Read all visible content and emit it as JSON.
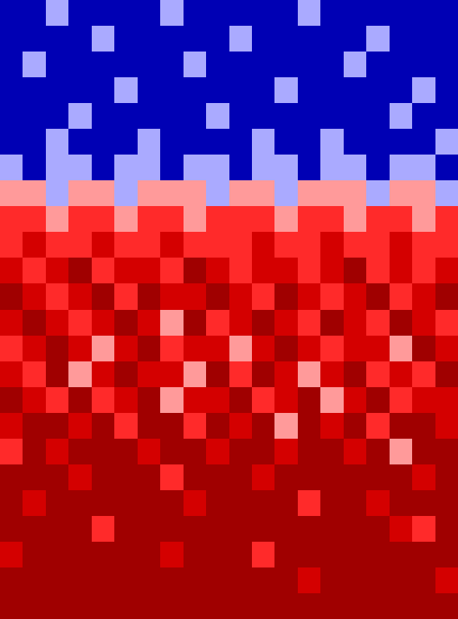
{
  "chart_data": {
    "type": "heatmap",
    "tick_labels": false,
    "colors": [
      "#0000b4",
      "#aaaaff",
      "#ff9a9a",
      "#ff2a2a",
      "#d40000",
      "#a00000"
    ],
    "values": [
      [
        0,
        0,
        1,
        0,
        0,
        0,
        0,
        1,
        0,
        0,
        0,
        0,
        0,
        1,
        0,
        0,
        0,
        0,
        0,
        0
      ],
      [
        0,
        0,
        0,
        0,
        1,
        0,
        0,
        0,
        0,
        0,
        1,
        0,
        0,
        0,
        0,
        0,
        1,
        0,
        0,
        0
      ],
      [
        0,
        1,
        0,
        0,
        0,
        0,
        0,
        0,
        1,
        0,
        0,
        0,
        0,
        0,
        0,
        1,
        0,
        0,
        0,
        0
      ],
      [
        0,
        0,
        0,
        0,
        0,
        1,
        0,
        0,
        0,
        0,
        0,
        0,
        1,
        0,
        0,
        0,
        0,
        0,
        1,
        0
      ],
      [
        0,
        0,
        0,
        1,
        0,
        0,
        0,
        0,
        0,
        1,
        0,
        0,
        0,
        0,
        0,
        0,
        0,
        1,
        0,
        0
      ],
      [
        0,
        0,
        1,
        0,
        0,
        0,
        1,
        0,
        0,
        0,
        0,
        1,
        0,
        0,
        1,
        0,
        0,
        0,
        0,
        1
      ],
      [
        1,
        0,
        1,
        1,
        0,
        1,
        1,
        0,
        1,
        1,
        0,
        1,
        1,
        0,
        1,
        1,
        0,
        1,
        1,
        0
      ],
      [
        2,
        2,
        1,
        2,
        2,
        1,
        2,
        2,
        2,
        1,
        2,
        2,
        1,
        2,
        2,
        2,
        1,
        2,
        2,
        1
      ],
      [
        3,
        3,
        2,
        3,
        3,
        2,
        3,
        3,
        2,
        3,
        3,
        3,
        2,
        3,
        3,
        2,
        3,
        3,
        2,
        3
      ],
      [
        3,
        4,
        3,
        3,
        4,
        3,
        3,
        4,
        3,
        3,
        3,
        4,
        3,
        3,
        4,
        3,
        3,
        4,
        3,
        3
      ],
      [
        4,
        3,
        4,
        5,
        3,
        4,
        4,
        3,
        5,
        4,
        3,
        4,
        4,
        3,
        4,
        5,
        3,
        4,
        3,
        4
      ],
      [
        5,
        4,
        3,
        4,
        5,
        3,
        5,
        4,
        4,
        5,
        4,
        3,
        5,
        4,
        3,
        4,
        5,
        3,
        4,
        5
      ],
      [
        4,
        5,
        4,
        3,
        4,
        5,
        4,
        2,
        5,
        3,
        4,
        5,
        4,
        3,
        5,
        4,
        3,
        5,
        4,
        3
      ],
      [
        3,
        4,
        5,
        4,
        2,
        4,
        5,
        3,
        4,
        4,
        2,
        4,
        5,
        4,
        3,
        4,
        4,
        2,
        5,
        4
      ],
      [
        4,
        3,
        5,
        2,
        4,
        5,
        4,
        4,
        2,
        5,
        3,
        5,
        4,
        2,
        4,
        5,
        3,
        4,
        3,
        5
      ],
      [
        5,
        4,
        3,
        5,
        3,
        4,
        5,
        2,
        4,
        4,
        5,
        3,
        4,
        5,
        2,
        4,
        5,
        3,
        4,
        4
      ],
      [
        4,
        5,
        5,
        4,
        5,
        3,
        5,
        5,
        3,
        5,
        4,
        5,
        2,
        5,
        4,
        5,
        3,
        5,
        5,
        4
      ],
      [
        3,
        5,
        4,
        5,
        5,
        5,
        4,
        5,
        5,
        4,
        5,
        5,
        4,
        5,
        5,
        4,
        5,
        2,
        5,
        5
      ],
      [
        5,
        5,
        5,
        4,
        5,
        5,
        5,
        3,
        5,
        5,
        5,
        4,
        5,
        5,
        5,
        5,
        5,
        5,
        4,
        5
      ],
      [
        5,
        4,
        5,
        5,
        5,
        5,
        5,
        5,
        4,
        5,
        5,
        5,
        5,
        3,
        5,
        5,
        4,
        5,
        5,
        5
      ],
      [
        5,
        5,
        5,
        5,
        3,
        5,
        5,
        5,
        5,
        5,
        5,
        5,
        5,
        5,
        5,
        5,
        5,
        4,
        3,
        5
      ],
      [
        4,
        5,
        5,
        5,
        5,
        5,
        5,
        4,
        5,
        5,
        5,
        3,
        5,
        5,
        5,
        5,
        5,
        5,
        5,
        5
      ],
      [
        5,
        5,
        5,
        5,
        5,
        5,
        5,
        5,
        5,
        5,
        5,
        5,
        5,
        4,
        5,
        5,
        5,
        5,
        5,
        4
      ],
      [
        5,
        5,
        5,
        5,
        5,
        5,
        5,
        5,
        5,
        5,
        5,
        5,
        5,
        5,
        5,
        5,
        5,
        5,
        5,
        5
      ]
    ]
  }
}
